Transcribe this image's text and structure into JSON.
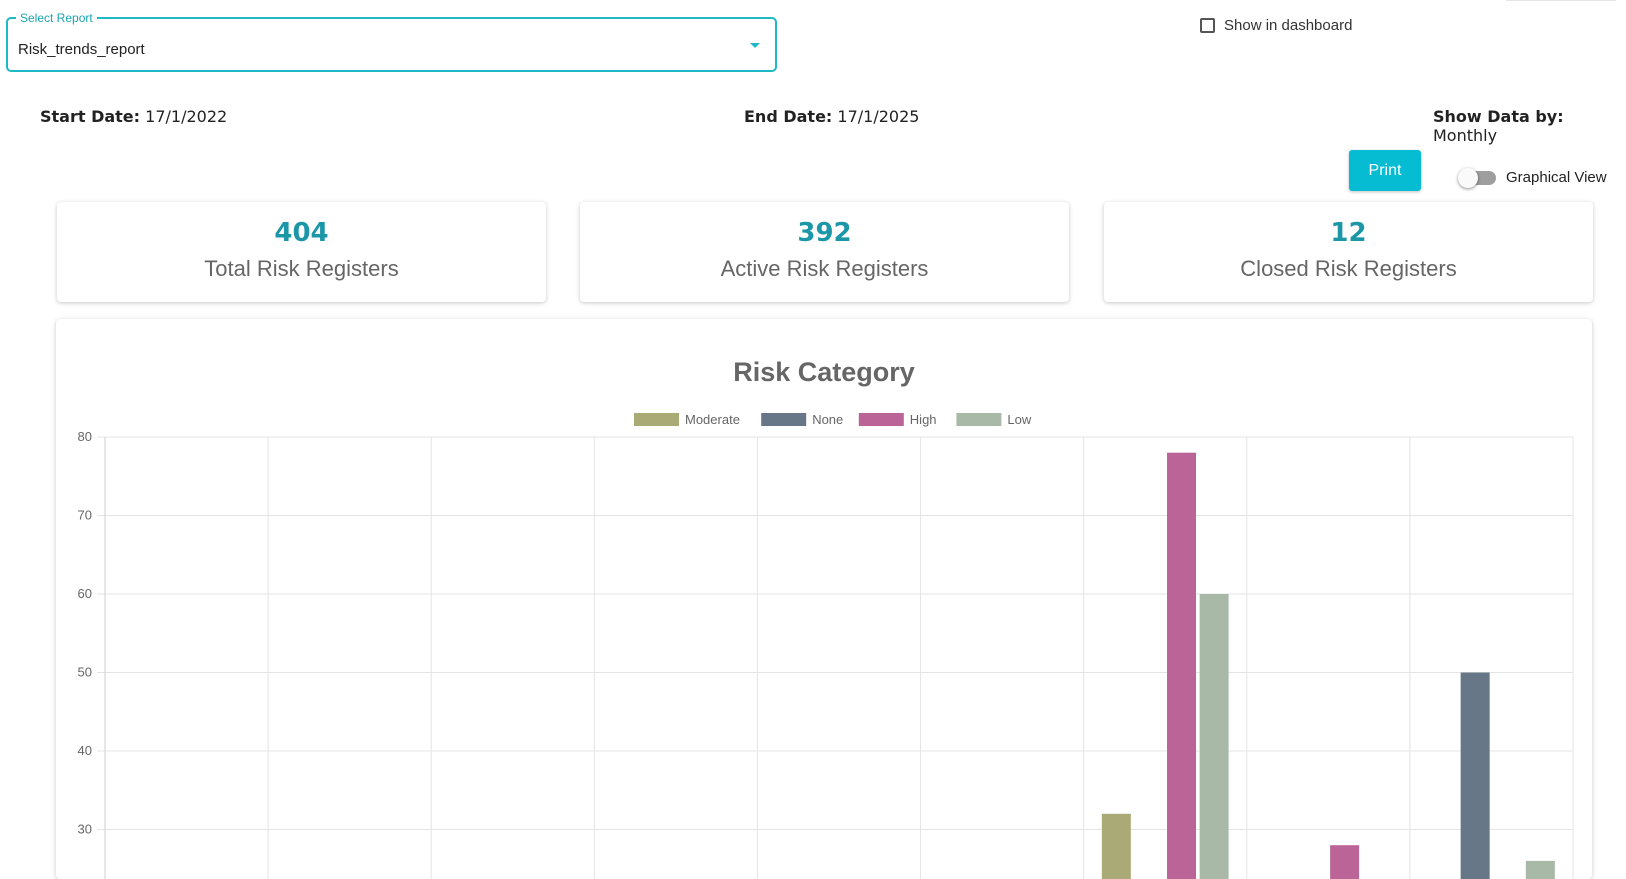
{
  "report_select": {
    "label": "Select Report",
    "value": "Risk_trends_report"
  },
  "dashboard": {
    "label": "Show in dashboard",
    "checked": false
  },
  "dates": {
    "start_label": "Start Date:",
    "start_value": "17/1/2022",
    "end_label": "End Date:",
    "end_value": "17/1/2025",
    "show_label": "Show Data by:",
    "show_value": "Monthly"
  },
  "actions": {
    "print_label": "Print",
    "graphical_view_label": "Graphical View",
    "graphical_view_on": false
  },
  "stats": [
    {
      "value": "404",
      "label": "Total Risk Registers"
    },
    {
      "value": "392",
      "label": "Active Risk Registers"
    },
    {
      "value": "12",
      "label": "Closed Risk Registers"
    }
  ],
  "colors": {
    "accent": "#1fb8c8",
    "button": "#05bcd3",
    "stat_value": "#1c97a8"
  },
  "chart_data": {
    "type": "bar",
    "title": "Risk Category",
    "xlabel": "",
    "ylabel": "",
    "legend_position": "top",
    "grid": true,
    "ylim_visible": [
      30,
      80
    ],
    "yticks": [
      80,
      70,
      60,
      50,
      40,
      30
    ],
    "category_count": 9,
    "series": [
      {
        "name": "Moderate",
        "color": "#a9aa75",
        "values": [
          0,
          0,
          0,
          0,
          0,
          0,
          32,
          0,
          0
        ]
      },
      {
        "name": "None",
        "color": "#677787",
        "values": [
          0,
          0,
          0,
          0,
          0,
          0,
          0,
          0,
          50
        ]
      },
      {
        "name": "High",
        "color": "#ba6497",
        "values": [
          0,
          0,
          0,
          0,
          0,
          0,
          78,
          28,
          0
        ]
      },
      {
        "name": "Low",
        "color": "#a8b9a7",
        "values": [
          0,
          0,
          0,
          0,
          0,
          0,
          60,
          0,
          26
        ]
      }
    ]
  }
}
